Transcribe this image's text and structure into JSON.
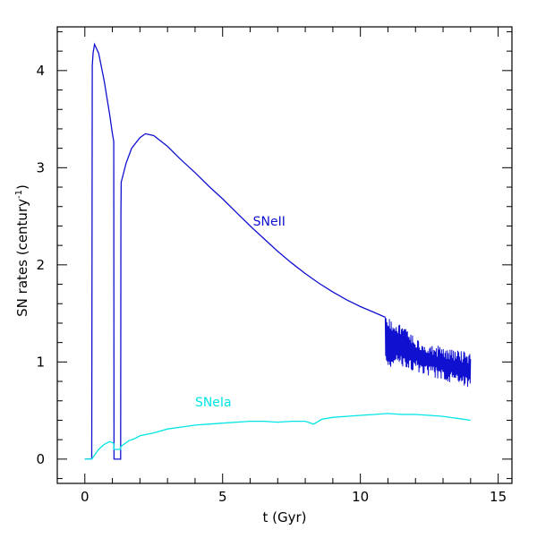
{
  "chart_data": {
    "type": "line",
    "title": "",
    "xlabel": "t (Gyr)",
    "ylabel_main": "SN rates (century",
    "ylabel_sup": "-1",
    "ylabel_close": ")",
    "xlim": [
      -1,
      15.5
    ],
    "ylim": [
      -0.25,
      4.45
    ],
    "xticks": [
      0,
      5,
      10,
      15
    ],
    "yticks": [
      0,
      1,
      2,
      3,
      4
    ],
    "xtick_labels": [
      "0",
      "5",
      "10",
      "15"
    ],
    "ytick_labels": [
      "0",
      "1",
      "2",
      "3",
      "4"
    ],
    "grid": false,
    "series": [
      {
        "name": "SNeII",
        "color": "#1010d0",
        "x": [
          0,
          0.25,
          0.27,
          0.3,
          0.35,
          0.5,
          0.7,
          0.9,
          1.0,
          1.05,
          1.06,
          1.3,
          1.31,
          1.32,
          1.5,
          1.7,
          2.0,
          2.2,
          2.5,
          3.0,
          3.5,
          4.0,
          4.5,
          5.0,
          5.5,
          6.0,
          6.5,
          7.0,
          7.5,
          8.0,
          8.5,
          9.0,
          9.5,
          10.0,
          10.5,
          10.9
        ],
        "y": [
          0,
          0,
          4.05,
          4.18,
          4.27,
          4.18,
          3.9,
          3.55,
          3.35,
          3.27,
          0,
          0,
          2.5,
          2.85,
          3.05,
          3.2,
          3.31,
          3.35,
          3.33,
          3.22,
          3.08,
          2.95,
          2.81,
          2.68,
          2.54,
          2.4,
          2.27,
          2.14,
          2.02,
          1.91,
          1.81,
          1.72,
          1.64,
          1.57,
          1.51,
          1.46
        ],
        "oscillation": {
          "x_start": 10.9,
          "x_end": 14.0,
          "upper": [
            [
              10.9,
              1.46
            ],
            [
              11.5,
              1.4
            ],
            [
              12.0,
              1.25
            ],
            [
              12.5,
              1.2
            ],
            [
              13.0,
              1.15
            ],
            [
              13.5,
              1.12
            ],
            [
              14.0,
              1.1
            ]
          ],
          "lower": [
            [
              10.9,
              0.95
            ],
            [
              11.5,
              0.95
            ],
            [
              12.0,
              0.9
            ],
            [
              12.5,
              0.85
            ],
            [
              13.0,
              0.8
            ],
            [
              13.5,
              0.78
            ],
            [
              14.0,
              0.72
            ]
          ]
        }
      },
      {
        "name": "SNeIa",
        "color": "#00e5e5",
        "x": [
          0,
          0.25,
          0.3,
          0.4,
          0.5,
          0.7,
          0.9,
          1.0,
          1.05,
          1.06,
          1.3,
          1.31,
          1.4,
          1.6,
          1.8,
          2.0,
          2.5,
          3.0,
          3.5,
          4.0,
          4.5,
          5.0,
          5.5,
          6.0,
          6.5,
          7.0,
          7.5,
          8.0,
          8.3,
          8.6,
          9.0,
          9.5,
          10.0,
          10.5,
          11.0,
          11.5,
          12.0,
          12.5,
          13.0,
          13.5,
          14.0
        ],
        "y": [
          0,
          0,
          0.02,
          0.06,
          0.1,
          0.15,
          0.18,
          0.17,
          0.16,
          0.1,
          0.1,
          0.13,
          0.15,
          0.19,
          0.21,
          0.24,
          0.27,
          0.31,
          0.33,
          0.35,
          0.36,
          0.37,
          0.38,
          0.39,
          0.39,
          0.38,
          0.39,
          0.39,
          0.36,
          0.41,
          0.43,
          0.44,
          0.45,
          0.46,
          0.47,
          0.46,
          0.46,
          0.45,
          0.44,
          0.42,
          0.4
        ]
      }
    ],
    "annotations": [
      {
        "text": "SNeII",
        "x": 6.1,
        "y": 2.45,
        "series": 0
      },
      {
        "text": "SNeIa",
        "x": 4.0,
        "y": 0.59,
        "series": 1
      }
    ]
  }
}
